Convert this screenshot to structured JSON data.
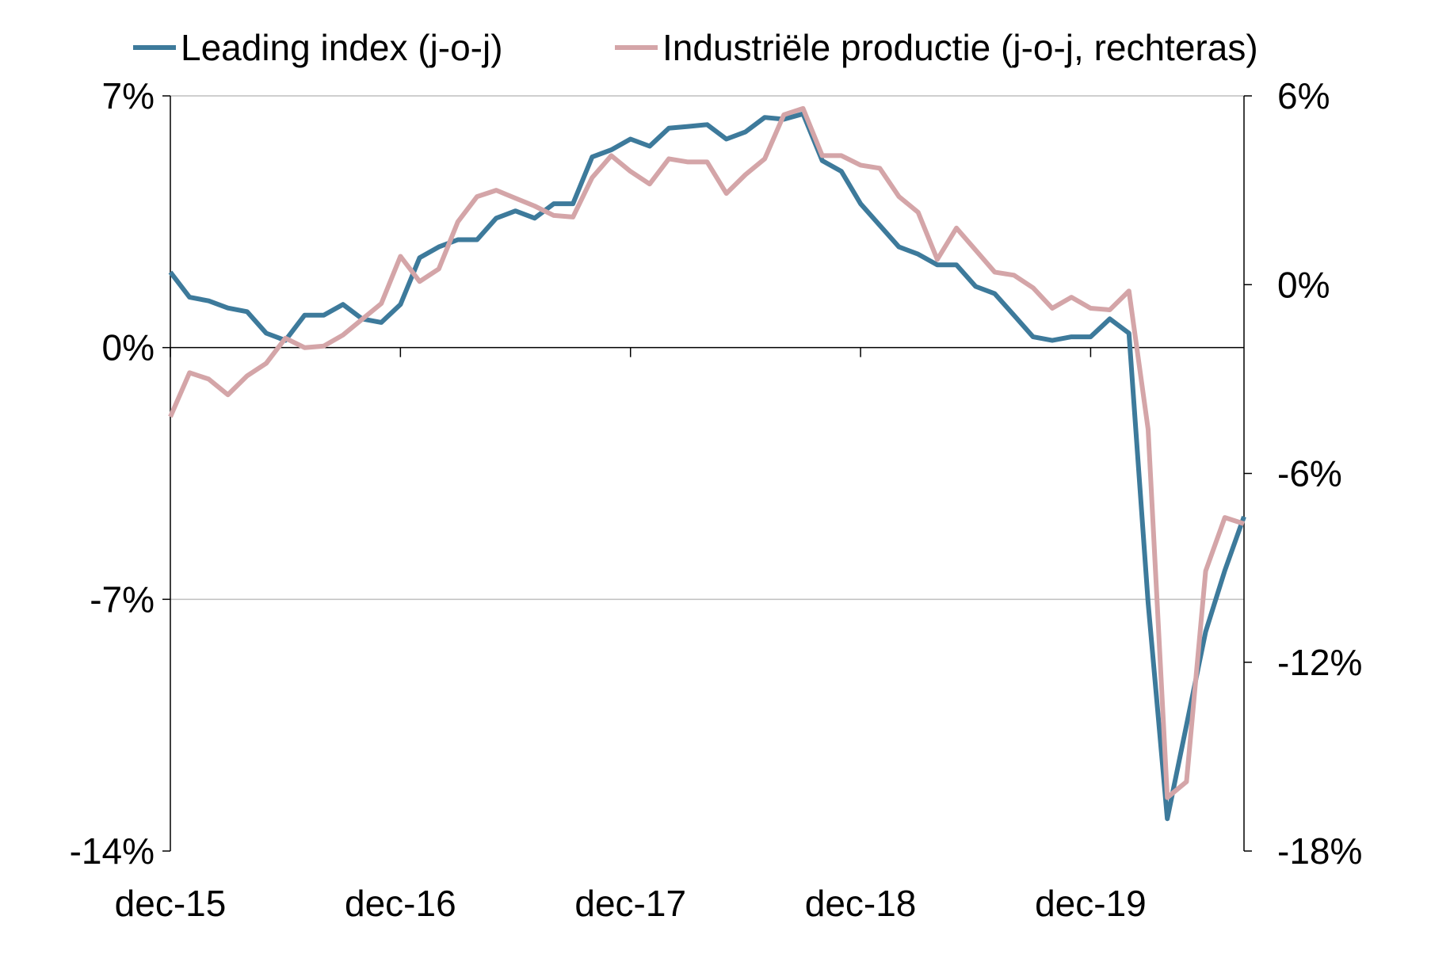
{
  "chart_data": {
    "type": "line",
    "x_ticks": [
      "dec-15",
      "dec-16",
      "dec-17",
      "dec-18",
      "dec-19"
    ],
    "y_left": {
      "ticks": [
        "7%",
        "0%",
        "-7%",
        "-14%"
      ],
      "range": [
        -14,
        7
      ]
    },
    "y_right": {
      "ticks": [
        "6%",
        "0%",
        "-6%",
        "-12%",
        "-18%"
      ],
      "range": [
        -18,
        6
      ]
    },
    "grid": true,
    "legend_position": "top",
    "series": [
      {
        "name": "Leading index (j-o-j)",
        "axis": "left",
        "color": "#3d7a9b",
        "values": [
          2.1,
          1.4,
          1.3,
          1.1,
          1.0,
          0.4,
          0.2,
          0.9,
          0.9,
          1.2,
          0.8,
          0.7,
          1.2,
          2.5,
          2.8,
          3.0,
          3.0,
          3.6,
          3.8,
          3.6,
          4.0,
          4.0,
          5.3,
          5.5,
          5.8,
          5.6,
          6.1,
          6.15,
          6.2,
          5.8,
          6.0,
          6.4,
          6.35,
          6.5,
          5.2,
          4.9,
          4.0,
          3.4,
          2.8,
          2.6,
          2.3,
          2.3,
          1.7,
          1.5,
          0.9,
          0.3,
          0.2,
          0.3,
          0.3,
          0.8,
          0.4,
          -7.1,
          -13.1,
          -10.5,
          -7.9,
          -6.2,
          -4.7
        ]
      },
      {
        "name": "Industriële productie (j-o-j, rechteras)",
        "axis": "right",
        "color": "#d4a5a8",
        "values": [
          -4.2,
          -2.8,
          -3.0,
          -3.5,
          -2.9,
          -2.5,
          -1.7,
          -2.0,
          -1.95,
          -1.6,
          -1.1,
          -0.6,
          0.9,
          0.1,
          0.5,
          2.0,
          2.8,
          3.0,
          2.75,
          2.5,
          2.2,
          2.15,
          3.4,
          4.1,
          3.6,
          3.2,
          4.0,
          3.9,
          3.9,
          2.9,
          3.5,
          4.0,
          5.4,
          5.6,
          4.1,
          4.1,
          3.8,
          3.7,
          2.8,
          2.3,
          0.8,
          1.8,
          1.1,
          0.4,
          0.3,
          -0.1,
          -0.75,
          -0.4,
          -0.75,
          -0.8,
          -0.2,
          -4.6,
          -16.3,
          -15.8,
          -9.1,
          -7.4,
          -7.6
        ]
      }
    ]
  }
}
